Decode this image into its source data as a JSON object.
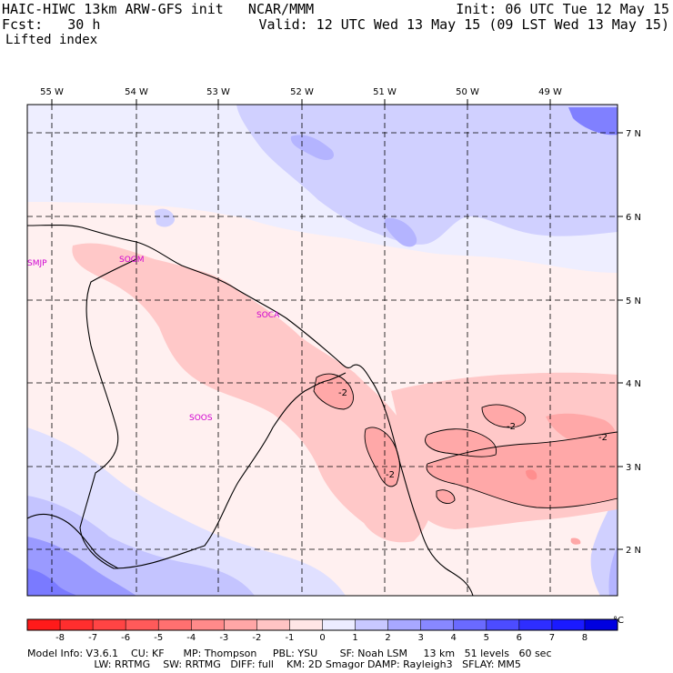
{
  "header": {
    "model_line": "HAIC-HIWC 13km ARW-GFS init   NCAR/MMM",
    "fcst_line": "Fcst:   30 h",
    "field_name": "Lifted index",
    "init_line": "Init: 06 UTC Tue 12 May 15",
    "valid_line": "Valid: 12 UTC Wed 13 May 15 (09 LST Wed 13 May 15)"
  },
  "map": {
    "lon_labels": [
      "55 W",
      "54 W",
      "53 W",
      "52 W",
      "51 W",
      "50 W",
      "49 W"
    ],
    "lat_labels": [
      "7 N",
      "6 N",
      "5 N",
      "4 N",
      "3 N",
      "2 N"
    ],
    "stations": [
      "SMJP",
      "SOGM",
      "SOCA",
      "SOOS"
    ],
    "contour_labels": [
      "-2",
      "-2",
      "-2",
      "-2"
    ],
    "colors": {
      "station_label": "#d000d0",
      "coast": "#000000",
      "grid": "#000000"
    }
  },
  "colorbar": {
    "tick_labels": [
      "-8",
      "-7",
      "-6",
      "-5",
      "-4",
      "-3",
      "-2",
      "-1",
      "0",
      "1",
      "2",
      "3",
      "4",
      "5",
      "6",
      "7",
      "8"
    ],
    "unit": "°C",
    "colors": [
      "#ff1a1a",
      "#ff2e2e",
      "#ff4444",
      "#ff5a5a",
      "#ff7070",
      "#ff8a8a",
      "#ffa6a6",
      "#ffc4c4",
      "#ffe6e6",
      "#ececff",
      "#c8c8ff",
      "#a8a8ff",
      "#8888ff",
      "#6a6aff",
      "#4c4cff",
      "#2e2eff",
      "#1a1aff",
      "#0000e0"
    ]
  },
  "footer": {
    "line1": "Model Info: V3.6.1    CU: KF      MP: Thompson     PBL: YSU       SF: Noah LSM     13 km   51 levels   60 sec",
    "line2": "                     LW: RRTMG    SW: RRTMG   DIFF: full    KM: 2D Smagor DAMP: Rayleigh3   SFLAY: MM5"
  }
}
